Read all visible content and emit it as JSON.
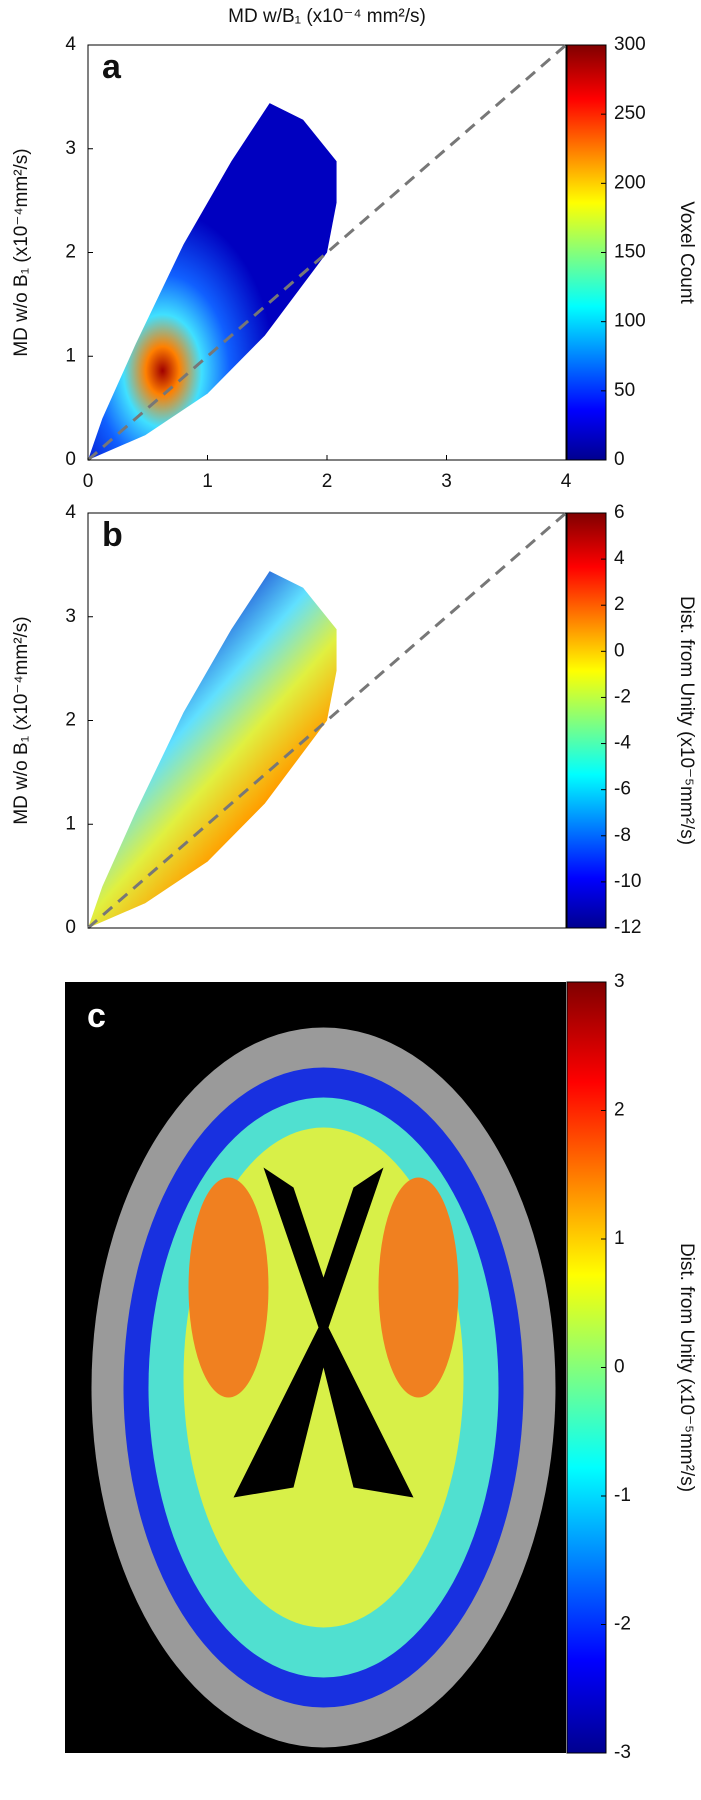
{
  "chart_data": [
    {
      "type": "heatmap",
      "panel": "a",
      "xlabel": "MD w/B₁ (x10⁻⁴ mm²/s)",
      "ylabel": "MD w/o B₁ (x10⁻⁴mm²/s)",
      "xlim": [
        0,
        4
      ],
      "ylim": [
        0,
        4
      ],
      "xticks": [
        0,
        1,
        2,
        3,
        4
      ],
      "yticks": [
        0,
        1,
        2,
        3,
        4
      ],
      "colorbar": {
        "label": "Voxel Count",
        "lim": [
          0,
          300
        ],
        "ticks": [
          0,
          50,
          100,
          150,
          200,
          250,
          300
        ]
      }
    },
    {
      "type": "heatmap",
      "panel": "b",
      "ylabel": "MD w/o B₁ (x10⁻⁴mm²/s)",
      "xlim": [
        0,
        4
      ],
      "ylim": [
        0,
        4
      ],
      "yticks": [
        0,
        1,
        2,
        3,
        4
      ],
      "colorbar": {
        "label": "Dist. from Unity (x10⁻⁵mm²/s)",
        "lim": [
          -12,
          6
        ],
        "ticks": [
          -12,
          -10,
          -8,
          -6,
          -4,
          -2,
          0,
          2,
          4,
          6
        ]
      }
    },
    {
      "type": "image",
      "panel": "c",
      "colorbar": {
        "label": "Dist. from Unity (x10⁻⁵mm²/s)",
        "lim": [
          -3,
          3
        ],
        "ticks": [
          -3,
          -2,
          -1,
          0,
          1,
          2,
          3
        ]
      }
    }
  ]
}
